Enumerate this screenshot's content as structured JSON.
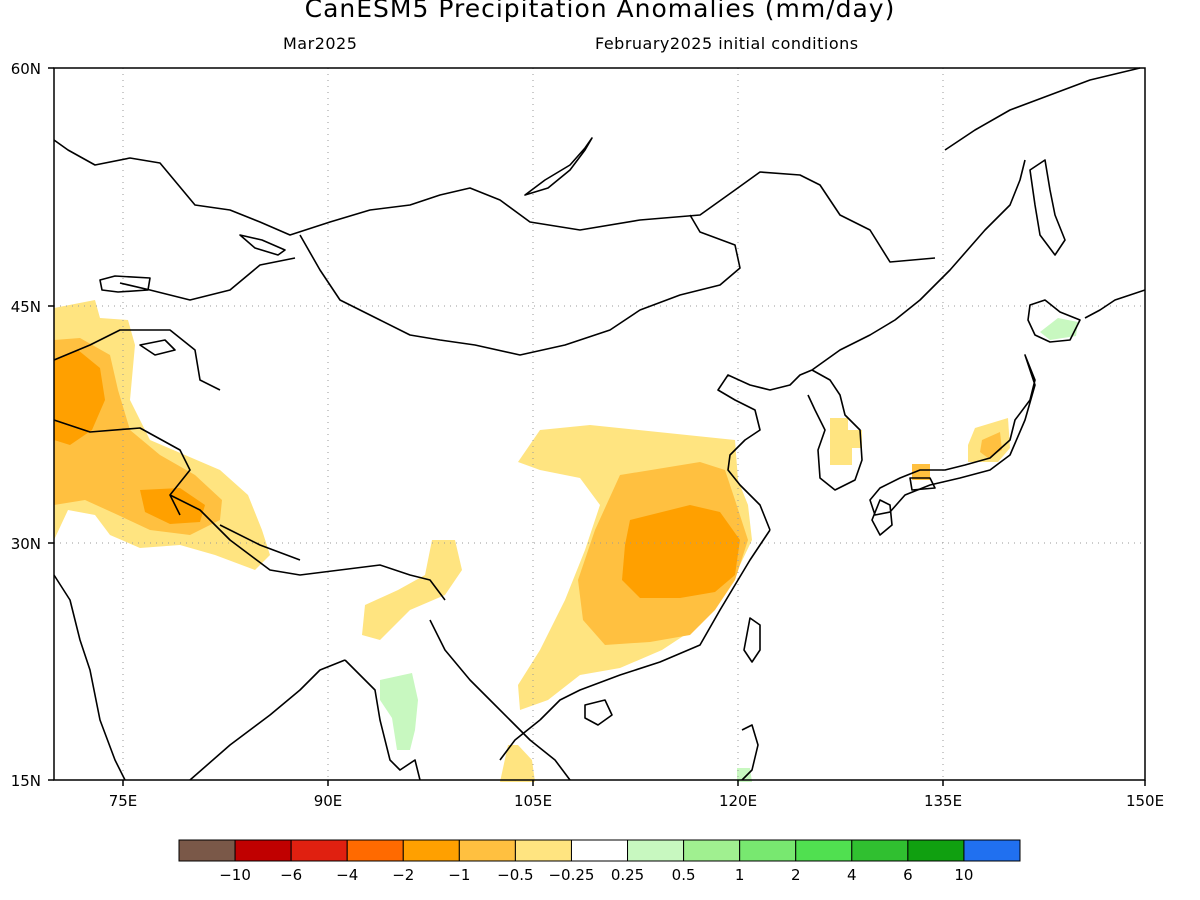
{
  "header": {
    "title": "CanESM5 Precipitation Anomalies (mm/day)",
    "subtitle_left": "Mar2025",
    "subtitle_right": "February2025 initial conditions"
  },
  "map": {
    "lon_ticks": [
      "75E",
      "90E",
      "105E",
      "120E",
      "135E",
      "150E"
    ],
    "lat_ticks": [
      "60N",
      "45N",
      "30N",
      "15N"
    ]
  },
  "legend": {
    "colors": [
      "#7a5848",
      "#c00000",
      "#e02010",
      "#ff6a00",
      "#ffa000",
      "#ffc040",
      "#ffe480",
      "#ffffff",
      "#c8f8c0",
      "#a0f090",
      "#78e870",
      "#50e050",
      "#30c030",
      "#10a010",
      "#2070f0"
    ],
    "labels": [
      "−10",
      "−6",
      "−4",
      "−2",
      "−1",
      "−0.5",
      "−0.25",
      "0.25",
      "0.5",
      "1",
      "2",
      "4",
      "6",
      "10"
    ]
  }
}
